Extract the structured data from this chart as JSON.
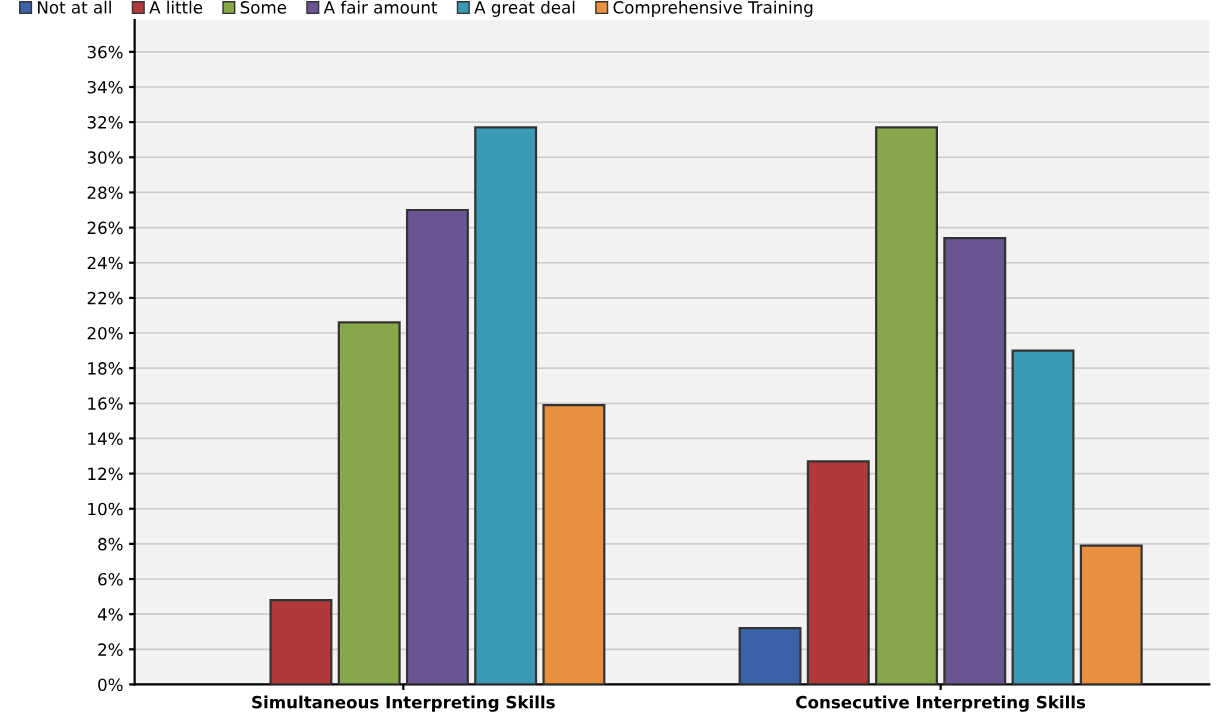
{
  "chart_data": {
    "type": "bar",
    "categories": [
      "Simultaneous Interpreting Skills",
      "Consecutive Interpreting Skills"
    ],
    "series": [
      {
        "name": "Not at all",
        "color": "#3a62a8",
        "values": [
          null,
          3.2
        ]
      },
      {
        "name": "A little",
        "color": "#b03a3a",
        "values": [
          4.8,
          12.7
        ]
      },
      {
        "name": "Some",
        "color": "#86a84a",
        "values": [
          20.6,
          31.7
        ]
      },
      {
        "name": "A fair amount",
        "color": "#6a5592",
        "values": [
          27.0,
          25.4
        ]
      },
      {
        "name": "A great deal",
        "color": "#3a9ab4",
        "values": [
          31.7,
          19.0
        ]
      },
      {
        "name": "Comprehensive Training",
        "color": "#e8903e",
        "values": [
          15.9,
          7.9
        ]
      }
    ],
    "ylim": [
      0,
      37.8
    ],
    "yticks": [
      {
        "value": 0,
        "label": "0%"
      },
      {
        "value": 2,
        "label": "2%"
      },
      {
        "value": 4,
        "label": "4%"
      },
      {
        "value": 6,
        "label": "6%"
      },
      {
        "value": 8,
        "label": "8%"
      },
      {
        "value": 10,
        "label": "10%"
      },
      {
        "value": 12,
        "label": "12%"
      },
      {
        "value": 14,
        "label": "14%"
      },
      {
        "value": 16,
        "label": "16%"
      },
      {
        "value": 18,
        "label": "18%"
      },
      {
        "value": 20,
        "label": "20%"
      },
      {
        "value": 22,
        "label": "22%"
      },
      {
        "value": 24,
        "label": "24%"
      },
      {
        "value": 26,
        "label": "26%"
      },
      {
        "value": 28,
        "label": "28%"
      },
      {
        "value": 30,
        "label": "30%"
      },
      {
        "value": 32,
        "label": "32%"
      },
      {
        "value": 34,
        "label": "34%"
      },
      {
        "value": 36,
        "label": "36%"
      }
    ],
    "grid": "y",
    "legend": "top left"
  }
}
